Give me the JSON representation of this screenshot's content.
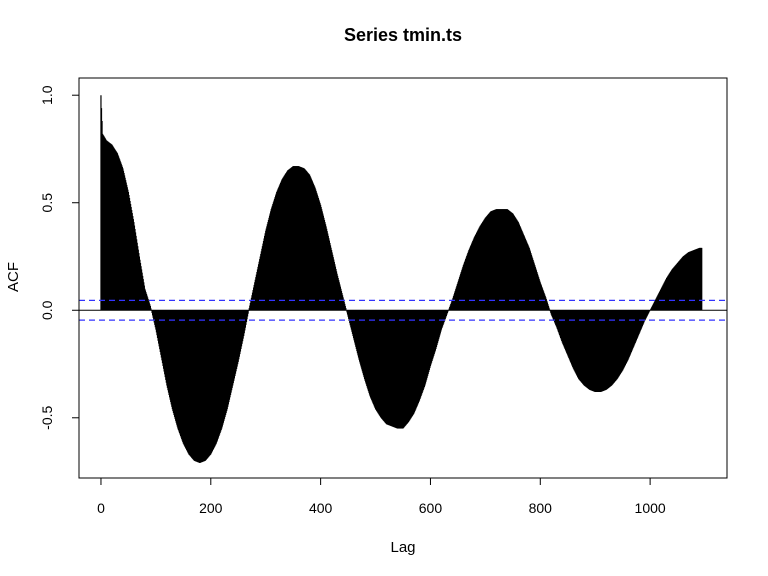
{
  "chart_data": {
    "type": "bar",
    "title": "Series  tmin.ts",
    "xlabel": "Lag",
    "ylabel": "ACF",
    "xlim": [
      -40,
      1140
    ],
    "ylim": [
      -0.78,
      1.08
    ],
    "x_ticks": [
      {
        "value": 0,
        "label": "0"
      },
      {
        "value": 200,
        "label": "200"
      },
      {
        "value": 400,
        "label": "400"
      },
      {
        "value": 600,
        "label": "600"
      },
      {
        "value": 800,
        "label": "800"
      },
      {
        "value": 1000,
        "label": "1000"
      }
    ],
    "y_ticks": [
      {
        "value": -0.5,
        "label": "-0.5"
      },
      {
        "value": 0.0,
        "label": "0.0"
      },
      {
        "value": 0.5,
        "label": "0.5"
      },
      {
        "value": 1.0,
        "label": "1.0"
      }
    ],
    "confidence_band": [
      -0.046,
      0.046
    ],
    "lag_range": [
      0,
      1094
    ],
    "acf_points": [
      {
        "lag": 0,
        "acf": 1.0
      },
      {
        "lag": 3,
        "acf": 0.82
      },
      {
        "lag": 10,
        "acf": 0.79
      },
      {
        "lag": 20,
        "acf": 0.77
      },
      {
        "lag": 30,
        "acf": 0.73
      },
      {
        "lag": 40,
        "acf": 0.66
      },
      {
        "lag": 50,
        "acf": 0.55
      },
      {
        "lag": 60,
        "acf": 0.41
      },
      {
        "lag": 70,
        "acf": 0.25
      },
      {
        "lag": 80,
        "acf": 0.1
      },
      {
        "lag": 90,
        "acf": 0.02
      },
      {
        "lag": 100,
        "acf": -0.09
      },
      {
        "lag": 110,
        "acf": -0.22
      },
      {
        "lag": 120,
        "acf": -0.35
      },
      {
        "lag": 130,
        "acf": -0.46
      },
      {
        "lag": 140,
        "acf": -0.55
      },
      {
        "lag": 150,
        "acf": -0.62
      },
      {
        "lag": 160,
        "acf": -0.67
      },
      {
        "lag": 170,
        "acf": -0.7
      },
      {
        "lag": 180,
        "acf": -0.71
      },
      {
        "lag": 190,
        "acf": -0.7
      },
      {
        "lag": 200,
        "acf": -0.67
      },
      {
        "lag": 210,
        "acf": -0.62
      },
      {
        "lag": 220,
        "acf": -0.55
      },
      {
        "lag": 230,
        "acf": -0.46
      },
      {
        "lag": 240,
        "acf": -0.35
      },
      {
        "lag": 250,
        "acf": -0.24
      },
      {
        "lag": 260,
        "acf": -0.12
      },
      {
        "lag": 270,
        "acf": 0.01
      },
      {
        "lag": 280,
        "acf": 0.13
      },
      {
        "lag": 290,
        "acf": 0.25
      },
      {
        "lag": 300,
        "acf": 0.37
      },
      {
        "lag": 310,
        "acf": 0.47
      },
      {
        "lag": 320,
        "acf": 0.55
      },
      {
        "lag": 330,
        "acf": 0.61
      },
      {
        "lag": 340,
        "acf": 0.65
      },
      {
        "lag": 350,
        "acf": 0.67
      },
      {
        "lag": 360,
        "acf": 0.67
      },
      {
        "lag": 370,
        "acf": 0.66
      },
      {
        "lag": 380,
        "acf": 0.63
      },
      {
        "lag": 390,
        "acf": 0.57
      },
      {
        "lag": 400,
        "acf": 0.49
      },
      {
        "lag": 410,
        "acf": 0.39
      },
      {
        "lag": 420,
        "acf": 0.28
      },
      {
        "lag": 430,
        "acf": 0.17
      },
      {
        "lag": 440,
        "acf": 0.07
      },
      {
        "lag": 450,
        "acf": -0.03
      },
      {
        "lag": 460,
        "acf": -0.13
      },
      {
        "lag": 470,
        "acf": -0.23
      },
      {
        "lag": 480,
        "acf": -0.32
      },
      {
        "lag": 490,
        "acf": -0.4
      },
      {
        "lag": 500,
        "acf": -0.46
      },
      {
        "lag": 510,
        "acf": -0.5
      },
      {
        "lag": 520,
        "acf": -0.53
      },
      {
        "lag": 530,
        "acf": -0.54
      },
      {
        "lag": 540,
        "acf": -0.55
      },
      {
        "lag": 550,
        "acf": -0.55
      },
      {
        "lag": 560,
        "acf": -0.52
      },
      {
        "lag": 570,
        "acf": -0.48
      },
      {
        "lag": 580,
        "acf": -0.42
      },
      {
        "lag": 590,
        "acf": -0.35
      },
      {
        "lag": 600,
        "acf": -0.26
      },
      {
        "lag": 610,
        "acf": -0.18
      },
      {
        "lag": 620,
        "acf": -0.09
      },
      {
        "lag": 630,
        "acf": -0.02
      },
      {
        "lag": 640,
        "acf": 0.05
      },
      {
        "lag": 650,
        "acf": 0.13
      },
      {
        "lag": 660,
        "acf": 0.21
      },
      {
        "lag": 670,
        "acf": 0.28
      },
      {
        "lag": 680,
        "acf": 0.34
      },
      {
        "lag": 690,
        "acf": 0.39
      },
      {
        "lag": 700,
        "acf": 0.43
      },
      {
        "lag": 710,
        "acf": 0.46
      },
      {
        "lag": 720,
        "acf": 0.47
      },
      {
        "lag": 730,
        "acf": 0.47
      },
      {
        "lag": 740,
        "acf": 0.47
      },
      {
        "lag": 750,
        "acf": 0.45
      },
      {
        "lag": 760,
        "acf": 0.41
      },
      {
        "lag": 770,
        "acf": 0.35
      },
      {
        "lag": 780,
        "acf": 0.29
      },
      {
        "lag": 790,
        "acf": 0.21
      },
      {
        "lag": 800,
        "acf": 0.13
      },
      {
        "lag": 810,
        "acf": 0.06
      },
      {
        "lag": 820,
        "acf": -0.02
      },
      {
        "lag": 830,
        "acf": -0.08
      },
      {
        "lag": 840,
        "acf": -0.15
      },
      {
        "lag": 850,
        "acf": -0.21
      },
      {
        "lag": 860,
        "acf": -0.27
      },
      {
        "lag": 870,
        "acf": -0.32
      },
      {
        "lag": 880,
        "acf": -0.35
      },
      {
        "lag": 890,
        "acf": -0.37
      },
      {
        "lag": 900,
        "acf": -0.38
      },
      {
        "lag": 910,
        "acf": -0.38
      },
      {
        "lag": 920,
        "acf": -0.37
      },
      {
        "lag": 930,
        "acf": -0.35
      },
      {
        "lag": 940,
        "acf": -0.32
      },
      {
        "lag": 950,
        "acf": -0.28
      },
      {
        "lag": 960,
        "acf": -0.23
      },
      {
        "lag": 970,
        "acf": -0.17
      },
      {
        "lag": 980,
        "acf": -0.11
      },
      {
        "lag": 990,
        "acf": -0.05
      },
      {
        "lag": 1000,
        "acf": 0.0
      },
      {
        "lag": 1010,
        "acf": 0.05
      },
      {
        "lag": 1020,
        "acf": 0.1
      },
      {
        "lag": 1030,
        "acf": 0.15
      },
      {
        "lag": 1040,
        "acf": 0.19
      },
      {
        "lag": 1050,
        "acf": 0.22
      },
      {
        "lag": 1060,
        "acf": 0.25
      },
      {
        "lag": 1070,
        "acf": 0.27
      },
      {
        "lag": 1080,
        "acf": 0.28
      },
      {
        "lag": 1090,
        "acf": 0.29
      },
      {
        "lag": 1094,
        "acf": 0.29
      }
    ],
    "grid": false,
    "colors": {
      "bars": "#000000",
      "confidence_line": "#3333ff",
      "zero_line": "#000000",
      "frame": "#000000"
    }
  }
}
